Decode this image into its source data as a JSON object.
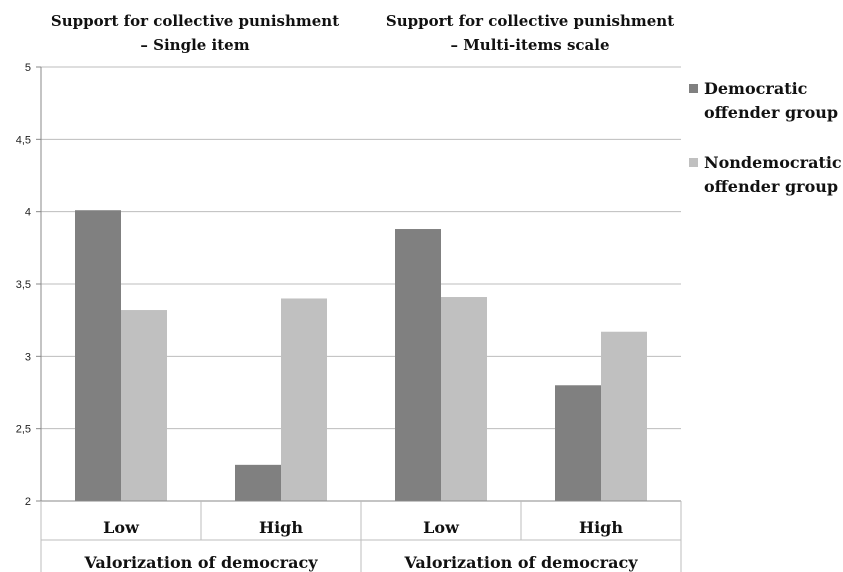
{
  "chart_data": {
    "type": "bar",
    "panel_titles": [
      [
        "Support for collective punishment",
        "– Single item"
      ],
      [
        "Support for collective punishment",
        "– Multi-items scale"
      ]
    ],
    "categories": [
      "Low",
      "High",
      "Low",
      "High"
    ],
    "group_label": "Valorization of democracy",
    "series": [
      {
        "name": "Democratic offender group",
        "values": [
          4.01,
          2.25,
          3.88,
          2.8
        ],
        "color": "#808080"
      },
      {
        "name": "Nondemocratic offender group",
        "values": [
          3.32,
          3.4,
          3.41,
          3.17
        ],
        "color": "#c0c0c0"
      }
    ],
    "legend_lines": [
      [
        "Democratic",
        "offender group"
      ],
      [
        "Nondemocratic",
        "offender group"
      ]
    ],
    "yticks": [
      "2",
      "2,5",
      "3",
      "3,5",
      "4",
      "4,5",
      "5"
    ],
    "ylim": [
      2,
      5
    ],
    "grid": true,
    "legend_position": "right"
  }
}
